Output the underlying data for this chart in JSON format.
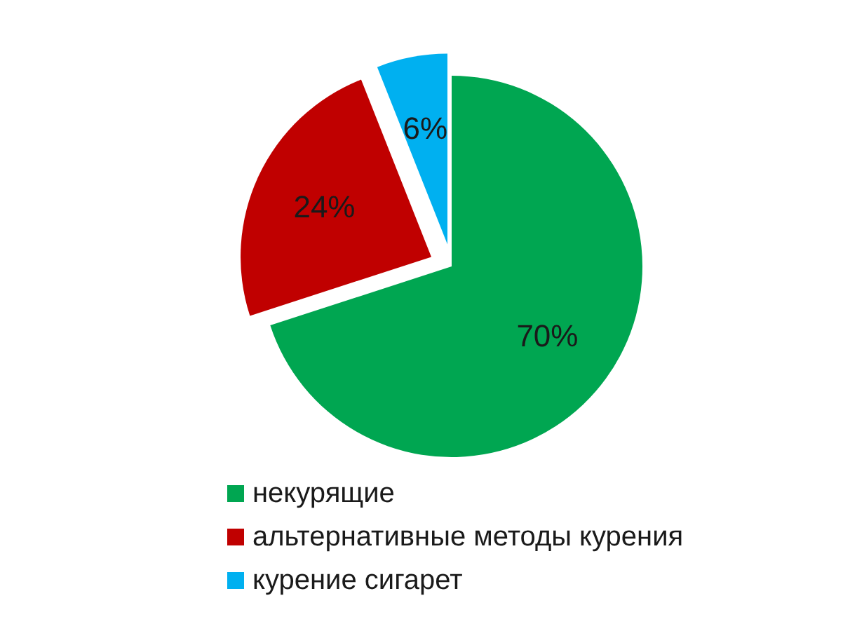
{
  "chart_data": {
    "type": "pie",
    "categories": [
      "некурящие",
      "альтернативные методы курения",
      "курение сигарет"
    ],
    "values": [
      70,
      24,
      6
    ],
    "colors": [
      "#00a651",
      "#c00000",
      "#00b0f0"
    ],
    "value_labels": [
      "70%",
      "24%",
      "6%"
    ],
    "legend": "bottom"
  }
}
